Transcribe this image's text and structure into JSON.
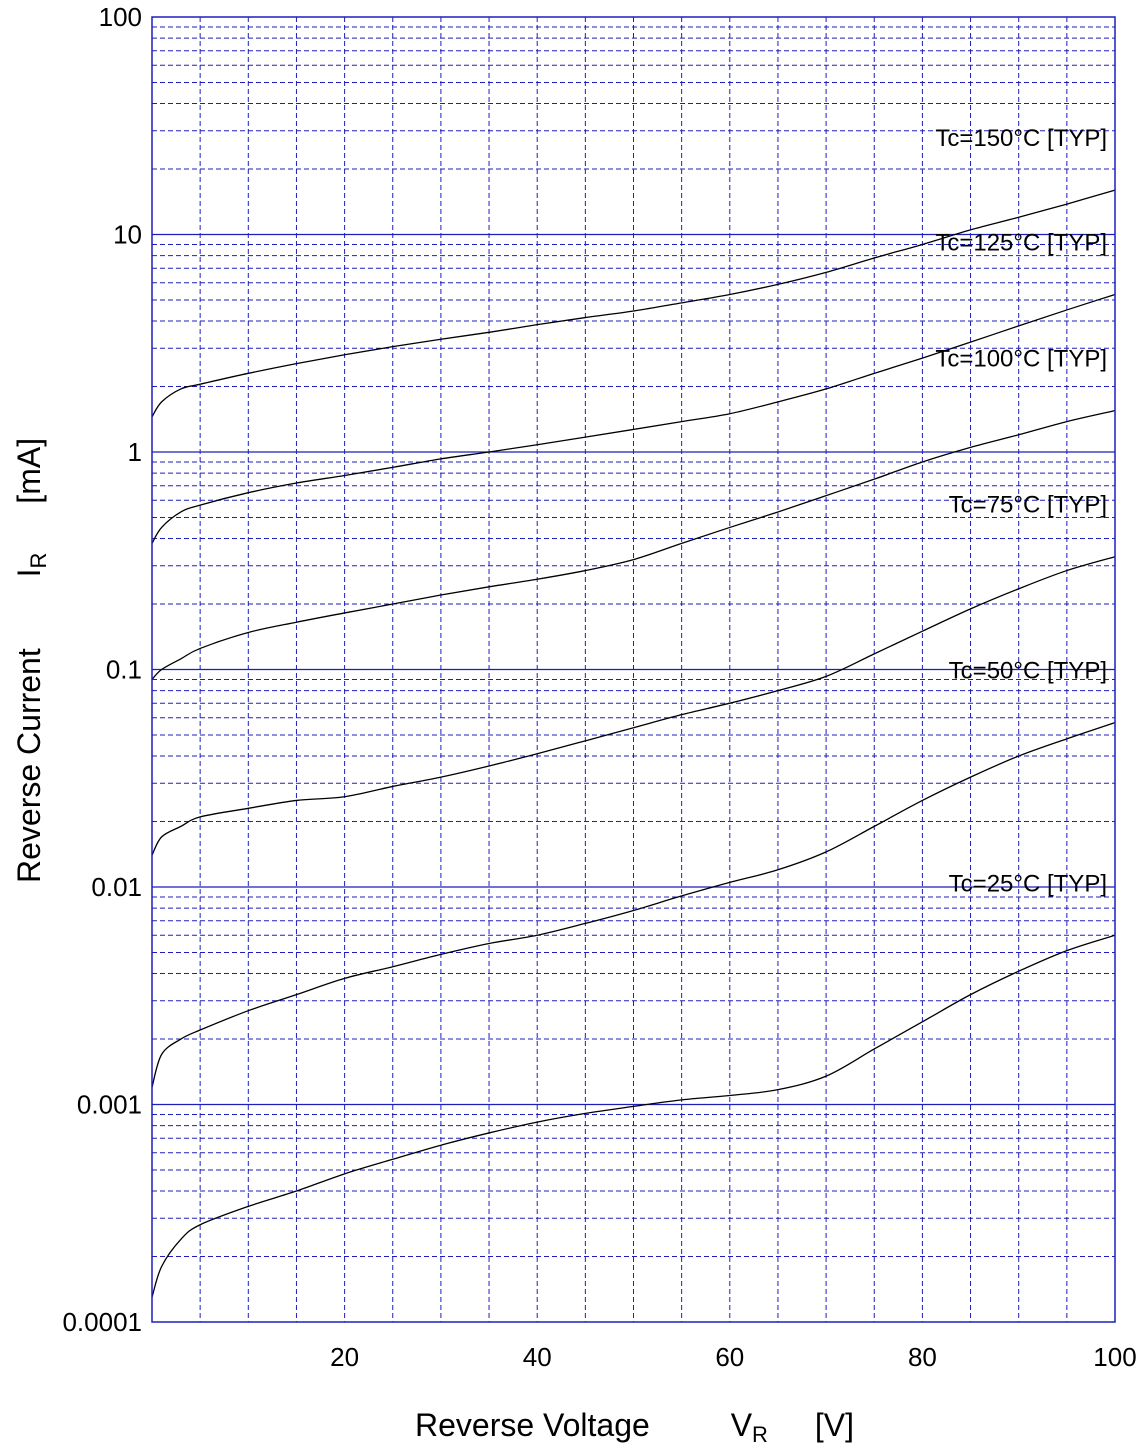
{
  "chart_data": {
    "type": "line",
    "xlabel": {
      "main": "Reverse Voltage",
      "symbol": "V",
      "subscript": "R",
      "unit": "[V]"
    },
    "ylabel": {
      "main": "Reverse Current",
      "symbol": "I",
      "subscript": "R",
      "unit": "[mA]"
    },
    "xlim": [
      0,
      100
    ],
    "ylim": [
      0.0001,
      100
    ],
    "y_scale": "log",
    "grid": true,
    "grid_color": "#1e1ebe",
    "line_color": "#000000",
    "x_ticks": [
      20,
      40,
      60,
      80,
      100
    ],
    "x_minor": [
      5,
      10,
      15,
      20,
      25,
      30,
      35,
      40,
      45,
      50,
      55,
      60,
      65,
      70,
      75,
      80,
      85,
      90,
      95
    ],
    "y_ticks": [
      {
        "value": 0.0001,
        "label": "0.0001"
      },
      {
        "value": 0.001,
        "label": "0.001"
      },
      {
        "value": 0.01,
        "label": "0.01"
      },
      {
        "value": 0.1,
        "label": "0.1"
      },
      {
        "value": 1,
        "label": "1"
      },
      {
        "value": 10,
        "label": "10"
      },
      {
        "value": 100,
        "label": "100"
      }
    ],
    "series": [
      {
        "name": "Tc=150°C  [TYP]",
        "x": [
          0,
          1,
          3,
          5,
          10,
          15,
          20,
          25,
          30,
          35,
          40,
          45,
          50,
          55,
          60,
          65,
          70,
          75,
          80,
          85,
          90,
          95,
          100
        ],
        "y": [
          1.45,
          1.7,
          1.95,
          2.05,
          2.3,
          2.55,
          2.8,
          3.05,
          3.3,
          3.55,
          3.85,
          4.15,
          4.45,
          4.85,
          5.3,
          5.9,
          6.7,
          7.8,
          9.0,
          10.5,
          12.0,
          13.8,
          16.0
        ]
      },
      {
        "name": "Tc=125°C  [TYP]",
        "x": [
          0,
          1,
          3,
          5,
          10,
          15,
          20,
          25,
          30,
          35,
          40,
          45,
          50,
          55,
          60,
          65,
          70,
          75,
          80,
          85,
          90,
          95,
          100
        ],
        "y": [
          0.38,
          0.45,
          0.53,
          0.57,
          0.65,
          0.72,
          0.78,
          0.85,
          0.93,
          1.0,
          1.08,
          1.17,
          1.27,
          1.38,
          1.5,
          1.7,
          1.95,
          2.3,
          2.7,
          3.2,
          3.8,
          4.5,
          5.3
        ]
      },
      {
        "name": "Tc=100°C  [TYP]",
        "x": [
          0,
          1,
          3,
          5,
          10,
          15,
          20,
          25,
          30,
          35,
          40,
          45,
          50,
          55,
          60,
          65,
          70,
          75,
          80,
          85,
          90,
          95,
          100
        ],
        "y": [
          0.09,
          0.1,
          0.112,
          0.125,
          0.148,
          0.165,
          0.182,
          0.2,
          0.22,
          0.24,
          0.26,
          0.285,
          0.32,
          0.38,
          0.45,
          0.53,
          0.63,
          0.75,
          0.9,
          1.05,
          1.2,
          1.38,
          1.55
        ]
      },
      {
        "name": "Tc=75°C  [TYP]",
        "x": [
          0,
          1,
          3,
          5,
          10,
          15,
          20,
          25,
          30,
          35,
          40,
          45,
          50,
          55,
          60,
          65,
          70,
          75,
          80,
          85,
          90,
          95,
          100
        ],
        "y": [
          0.014,
          0.017,
          0.019,
          0.021,
          0.023,
          0.025,
          0.026,
          0.029,
          0.032,
          0.036,
          0.041,
          0.047,
          0.054,
          0.062,
          0.07,
          0.08,
          0.093,
          0.118,
          0.15,
          0.19,
          0.235,
          0.285,
          0.33
        ]
      },
      {
        "name": "Tc=50°C  [TYP]",
        "x": [
          0,
          1,
          3,
          5,
          10,
          15,
          20,
          25,
          30,
          35,
          40,
          45,
          50,
          55,
          60,
          65,
          70,
          75,
          80,
          85,
          90,
          95,
          100
        ],
        "y": [
          0.0012,
          0.0017,
          0.002,
          0.0022,
          0.0027,
          0.0032,
          0.0038,
          0.0043,
          0.0049,
          0.0055,
          0.006,
          0.0068,
          0.0078,
          0.0091,
          0.0105,
          0.012,
          0.0145,
          0.019,
          0.025,
          0.032,
          0.04,
          0.048,
          0.057
        ]
      },
      {
        "name": "Tc=25°C  [TYP]",
        "x": [
          0,
          1,
          3,
          5,
          10,
          15,
          20,
          25,
          30,
          35,
          40,
          45,
          50,
          55,
          60,
          65,
          70,
          75,
          80,
          85,
          90,
          95,
          100
        ],
        "y": [
          0.00013,
          0.00018,
          0.00024,
          0.00028,
          0.00034,
          0.0004,
          0.00048,
          0.00056,
          0.00065,
          0.00074,
          0.00083,
          0.00091,
          0.00098,
          0.00105,
          0.0011,
          0.00117,
          0.00135,
          0.0018,
          0.0024,
          0.0032,
          0.0041,
          0.0051,
          0.006
        ]
      }
    ]
  }
}
